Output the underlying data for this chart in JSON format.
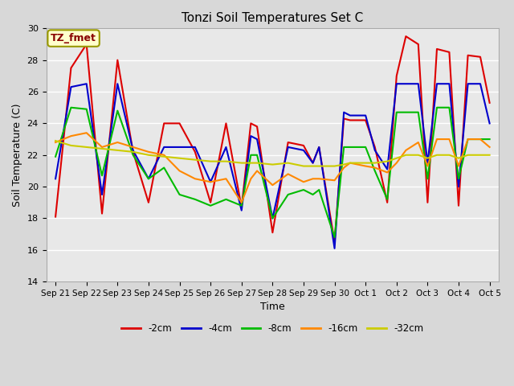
{
  "title": "Tonzi Soil Temperatures Set C",
  "xlabel": "Time",
  "ylabel": "Soil Temperature (C)",
  "ylim": [
    14,
    30
  ],
  "yticks": [
    14,
    16,
    18,
    20,
    22,
    24,
    26,
    28,
    30
  ],
  "annotation_label": "TZ_fmet",
  "annotation_color": "#880000",
  "annotation_bg": "#ffffcc",
  "annotation_border": "#999900",
  "plot_bg": "#e8e8e8",
  "fig_bg": "#d8d8d8",
  "series_order": [
    "-2cm",
    "-4cm",
    "-8cm",
    "-16cm",
    "-32cm"
  ],
  "series": {
    "-2cm": {
      "color": "#dd0000",
      "lw": 1.5
    },
    "-4cm": {
      "color": "#0000cc",
      "lw": 1.5
    },
    "-8cm": {
      "color": "#00bb00",
      "lw": 1.5
    },
    "-16cm": {
      "color": "#ff8800",
      "lw": 1.5
    },
    "-32cm": {
      "color": "#cccc00",
      "lw": 1.5
    }
  },
  "x_labels": [
    "Sep 21",
    "Sep 22",
    "Sep 23",
    "Sep 24",
    "Sep 25",
    "Sep 26",
    "Sep 27",
    "Sep 28",
    "Sep 29",
    "Sep 30",
    "Oct 1",
    "Oct 2",
    "Oct 3",
    "Oct 4",
    "Oct 5"
  ],
  "data_x": [
    0,
    0.5,
    1,
    1.5,
    2,
    2.5,
    3,
    3.5,
    4,
    4.5,
    5,
    5.5,
    6,
    6.3,
    6.5,
    7,
    7.5,
    8,
    8.3,
    8.5,
    9,
    9.3,
    9.5,
    10,
    10.3,
    10.7,
    11,
    11.3,
    11.7,
    12,
    12.3,
    12.7,
    13,
    13.3,
    13.7,
    14
  ],
  "data": {
    "-2cm": [
      18.1,
      27.5,
      29.0,
      18.3,
      28.0,
      22.2,
      19.0,
      24.0,
      24.0,
      22.2,
      19.0,
      24.0,
      18.7,
      24.0,
      23.8,
      17.1,
      22.8,
      22.6,
      21.5,
      22.5,
      16.5,
      24.3,
      24.2,
      24.2,
      22.5,
      19.0,
      27.0,
      29.5,
      29.0,
      19.0,
      28.7,
      28.5,
      18.8,
      28.3,
      28.2,
      25.3
    ],
    "-4cm": [
      20.5,
      26.3,
      26.5,
      19.5,
      26.5,
      22.3,
      20.5,
      22.5,
      22.5,
      22.5,
      20.3,
      22.5,
      18.5,
      23.2,
      23.0,
      18.0,
      22.5,
      22.3,
      21.5,
      22.5,
      16.1,
      24.7,
      24.5,
      24.5,
      22.3,
      21.1,
      26.5,
      26.5,
      26.5,
      21.5,
      26.5,
      26.5,
      20.0,
      26.5,
      26.5,
      24.0
    ],
    "-8cm": [
      21.9,
      25.0,
      24.9,
      20.7,
      24.8,
      22.0,
      20.5,
      21.2,
      19.5,
      19.2,
      18.8,
      19.2,
      18.8,
      22.0,
      22.0,
      18.0,
      19.5,
      19.8,
      19.5,
      19.8,
      16.8,
      22.5,
      22.5,
      22.5,
      21.0,
      19.2,
      24.7,
      24.7,
      24.7,
      20.5,
      25.0,
      25.0,
      20.5,
      23.0,
      23.0,
      23.0
    ],
    "-16cm": [
      22.8,
      23.2,
      23.4,
      22.5,
      22.8,
      22.5,
      22.2,
      22.0,
      21.0,
      20.5,
      20.3,
      20.5,
      19.0,
      20.5,
      21.0,
      20.1,
      20.8,
      20.3,
      20.5,
      20.5,
      20.4,
      21.2,
      21.5,
      21.3,
      21.2,
      20.9,
      21.5,
      22.3,
      22.8,
      21.3,
      23.0,
      23.0,
      21.3,
      23.0,
      23.0,
      22.5
    ],
    "-32cm": [
      22.9,
      22.6,
      22.5,
      22.4,
      22.3,
      22.2,
      22.0,
      21.9,
      21.8,
      21.7,
      21.6,
      21.6,
      21.5,
      21.5,
      21.5,
      21.4,
      21.5,
      21.3,
      21.3,
      21.3,
      21.3,
      21.4,
      21.5,
      21.5,
      21.5,
      21.6,
      21.8,
      22.0,
      22.0,
      21.8,
      22.0,
      22.0,
      21.8,
      22.0,
      22.0,
      22.0
    ]
  }
}
